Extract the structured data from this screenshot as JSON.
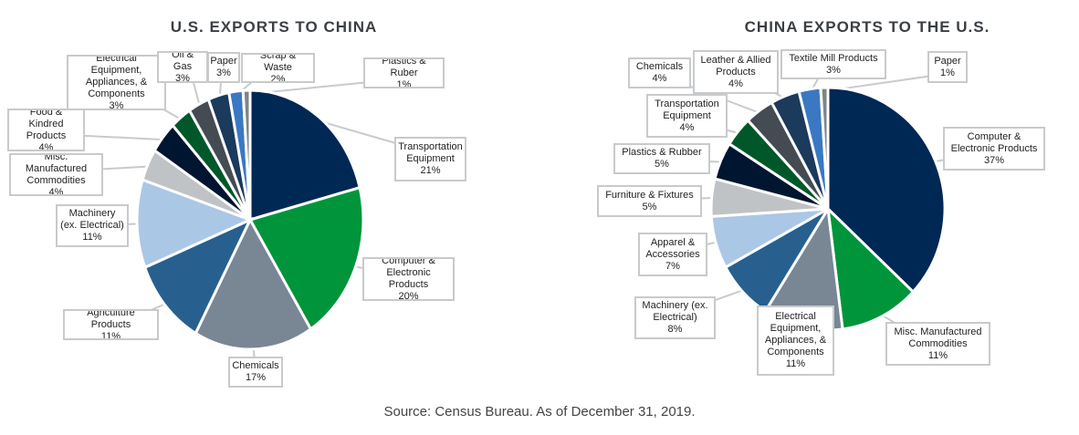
{
  "chart_data": [
    {
      "type": "pie",
      "title": "U.S. EXPORTS TO CHINA",
      "unit": "%",
      "slices": [
        {
          "label": "Transportation Equipment",
          "value": 21,
          "color": "#002855"
        },
        {
          "label": "Computer & Electronic Products",
          "value": 20,
          "color": "#00953A"
        },
        {
          "label": "Chemicals",
          "value": 17,
          "color": "#798694"
        },
        {
          "label": "Agriculture Products",
          "value": 11,
          "color": "#27608F"
        },
        {
          "label": "Machinery (ex. Electrical)",
          "value": 11,
          "color": "#ABC7E6"
        },
        {
          "label": "Misc. Manufactured Commodities",
          "value": 4,
          "color": "#C0C3C6"
        },
        {
          "label": "Food & Kindred Products",
          "value": 4,
          "color": "#00152F"
        },
        {
          "label": "Electrical Equipment, Appliances, & Components",
          "value": 3,
          "color": "#00582A"
        },
        {
          "label": "Oil & Gas",
          "value": 3,
          "color": "#444B53"
        },
        {
          "label": "Paper",
          "value": 3,
          "color": "#1B3A5C"
        },
        {
          "label": "Scrap & Waste",
          "value": 2,
          "color": "#3A78C2"
        },
        {
          "label": "Plastics & Ruber",
          "value": 1,
          "color": "#7F8588"
        }
      ]
    },
    {
      "type": "pie",
      "title": "CHINA EXPORTS TO THE U.S.",
      "unit": "%",
      "slices": [
        {
          "label": "Computer & Electronic Products",
          "value": 37,
          "color": "#002855"
        },
        {
          "label": "Misc. Manufactured Commodities",
          "value": 11,
          "color": "#00953A"
        },
        {
          "label": "Electrical Equipment, Appliances, & Components",
          "value": 11,
          "color": "#798694"
        },
        {
          "label": "Machinery (ex. Electrical)",
          "value": 8,
          "color": "#27608F"
        },
        {
          "label": "Apparel & Accessories",
          "value": 7,
          "color": "#ABC7E6"
        },
        {
          "label": "Furniture & Fixtures",
          "value": 5,
          "color": "#C0C3C6"
        },
        {
          "label": "Plastics & Rubber",
          "value": 5,
          "color": "#00152F"
        },
        {
          "label": "Transportation Equipment",
          "value": 4,
          "color": "#00582A"
        },
        {
          "label": "Chemicals",
          "value": 4,
          "color": "#444B53"
        },
        {
          "label": "Leather & Allied Products",
          "value": 4,
          "color": "#1B3A5C"
        },
        {
          "label": "Textile Mill Products",
          "value": 3,
          "color": "#3A78C2"
        },
        {
          "label": "Paper",
          "value": 1,
          "color": "#7F8588"
        }
      ]
    }
  ],
  "source": "Source: Census Bureau. As of December 31, 2019."
}
